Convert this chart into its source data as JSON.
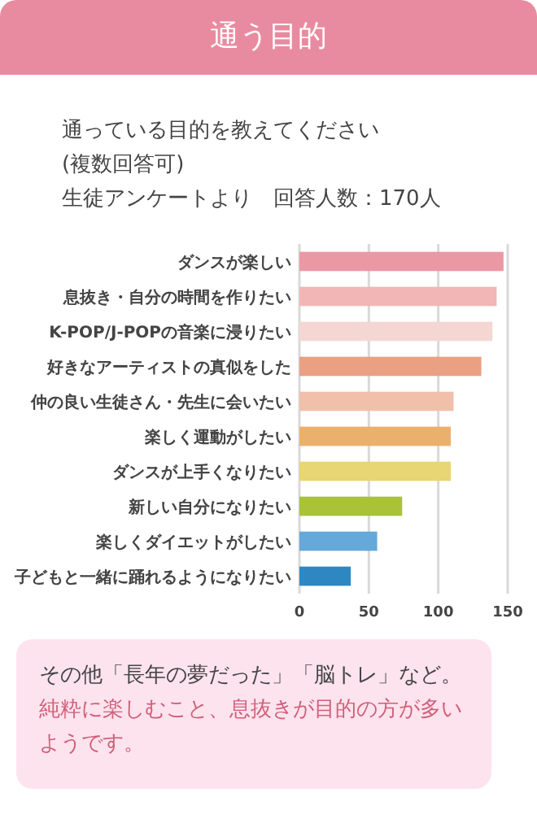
{
  "chart_data": {
    "type": "bar",
    "orientation": "horizontal",
    "title": "通う目的",
    "subtitle": "通っている目的を教えてください\n(複数回答可)\n生徒アンケートより　回答人数：170人",
    "categories": [
      "ダンスが楽しい",
      "息抜き・自分の時間を作りたい",
      "K-POP/J-POPの音楽に浸りたい",
      "好きなアーティストの真似をした",
      "仲の良い生徒さん・先生に会いたい",
      "楽しく運動がしたい",
      "ダンスが上手くなりたい",
      "新しい自分になりたい",
      "楽しくダイエットがしたい",
      "子どもと一緒に踊れるようになりたい"
    ],
    "values": [
      147,
      142,
      139,
      131,
      111,
      109,
      109,
      74,
      56,
      37
    ],
    "colors": [
      "#eb98a5",
      "#f2b6b6",
      "#f4d7d3",
      "#eaa083",
      "#f0c0ab",
      "#ebb06b",
      "#e8d574",
      "#aac238",
      "#65a8da",
      "#2f87c2"
    ],
    "xlim": [
      0,
      150
    ],
    "xticks": [
      0,
      50,
      100,
      150
    ],
    "grid": "x",
    "annotations": [
      "その他「長年の夢だった」「脳トレ」など。",
      "純粋に楽しむこと、息抜きが目的の方が多いようです。"
    ]
  }
}
